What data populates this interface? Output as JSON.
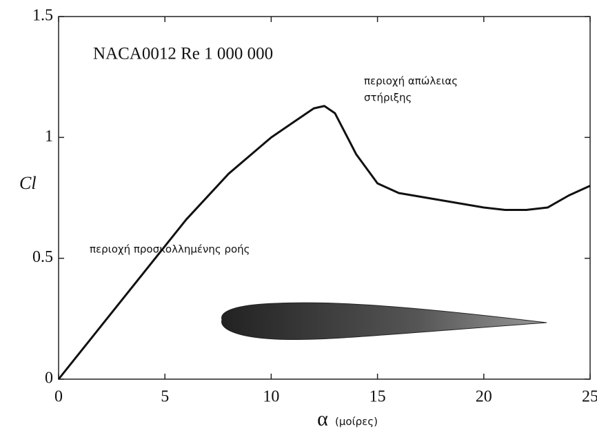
{
  "chart_data": {
    "type": "line",
    "title": "NACA0012 Re  1 000 000",
    "x_label": "α",
    "x_label_unit": "(μοίρες)",
    "y_label": "Cl",
    "x": [
      0,
      2,
      4,
      6,
      8,
      10,
      11,
      12,
      12.5,
      13,
      14,
      15,
      16,
      18,
      20,
      21,
      22,
      23,
      24,
      25
    ],
    "series": [
      {
        "color": "#111111",
        "values": [
          0,
          0.22,
          0.44,
          0.66,
          0.85,
          1.0,
          1.06,
          1.12,
          1.13,
          1.1,
          0.93,
          0.81,
          0.77,
          0.74,
          0.71,
          0.7,
          0.7,
          0.71,
          0.76,
          0.8
        ]
      }
    ],
    "xlim": [
      0,
      25
    ],
    "ylim": [
      0,
      1.5
    ],
    "xticks": [
      0,
      5,
      10,
      15,
      20,
      25
    ],
    "yticks": [
      0,
      0.5,
      1,
      1.5
    ],
    "annotations": [
      {
        "lines": [
          "περιοχή απώλειας",
          "στήριξης"
        ]
      },
      {
        "lines": [
          "περιοχή προσκολλημένης ροής"
        ]
      }
    ]
  }
}
